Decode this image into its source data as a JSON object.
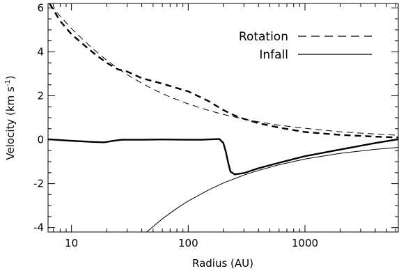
{
  "chart_data": {
    "type": "line",
    "xlabel": "Radius (AU)",
    "ylabel": "Velocity (km s",
    "ylabel_sup": "-1",
    "ylabel_tail": ")",
    "xscale": "log",
    "xlim": [
      6.3,
      6300
    ],
    "ylim": [
      -4.2,
      6.2
    ],
    "x_major_ticks": [
      10,
      100,
      1000
    ],
    "x_major_tick_labels": [
      "10",
      "100",
      "1000"
    ],
    "y_major_ticks": [
      -4,
      -2,
      0,
      2,
      4,
      6
    ],
    "y_major_tick_labels": [
      "-4",
      "-2",
      "0",
      "2",
      "4",
      "6"
    ],
    "y_minor_step": 0.5,
    "grid": false,
    "legend_position": "top-right",
    "legend": [
      {
        "label": "Rotation",
        "style": "dashed"
      },
      {
        "label": "Infall",
        "style": "solid"
      }
    ],
    "series": [
      {
        "legend": "Rotation",
        "style": "dashed",
        "weight": "thin",
        "x": [
          6.5,
          10,
          15,
          20,
          25,
          30,
          40,
          50,
          70,
          100,
          150,
          200,
          300,
          400,
          600,
          1000,
          2000,
          3000,
          5000,
          6300
        ],
        "y": [
          6.15,
          5.06,
          4.17,
          3.62,
          3.24,
          2.96,
          2.57,
          2.3,
          1.94,
          1.63,
          1.33,
          1.15,
          0.94,
          0.81,
          0.66,
          0.52,
          0.36,
          0.3,
          0.23,
          0.2
        ]
      },
      {
        "legend": "Rotation",
        "style": "dashed",
        "weight": "thick",
        "x": [
          6.5,
          8,
          10,
          15,
          20,
          25,
          30,
          40,
          60,
          80,
          100,
          150,
          200,
          250,
          300,
          400,
          600,
          1000,
          2000,
          4000,
          6300
        ],
        "y": [
          6.2,
          5.4,
          4.8,
          4.0,
          3.5,
          3.2,
          3.1,
          2.8,
          2.55,
          2.35,
          2.2,
          1.75,
          1.35,
          1.1,
          0.95,
          0.75,
          0.55,
          0.35,
          0.22,
          0.14,
          0.1
        ]
      },
      {
        "legend": "Infall",
        "style": "solid",
        "weight": "thick",
        "x": [
          6.3,
          10,
          15,
          19,
          23,
          27,
          40,
          60,
          100,
          130,
          160,
          185,
          200,
          210,
          220,
          230,
          250,
          300,
          400,
          600,
          1000,
          2000,
          4000,
          6300
        ],
        "y": [
          0.02,
          -0.05,
          -0.1,
          -0.12,
          -0.05,
          0.0,
          0.0,
          0.01,
          0.0,
          0.0,
          0.02,
          0.03,
          -0.15,
          -0.55,
          -1.05,
          -1.45,
          -1.58,
          -1.52,
          -1.3,
          -1.05,
          -0.75,
          -0.45,
          -0.15,
          0.02
        ]
      },
      {
        "legend": "Infall",
        "style": "solid",
        "weight": "thin",
        "x": [
          44,
          60,
          80,
          100,
          150,
          200,
          300,
          400,
          600,
          1000,
          2000,
          4000,
          6300
        ],
        "y": [
          -4.2,
          -3.6,
          -3.12,
          -2.79,
          -2.28,
          -1.97,
          -1.61,
          -1.4,
          -1.14,
          -0.88,
          -0.62,
          -0.44,
          -0.35
        ]
      }
    ]
  }
}
